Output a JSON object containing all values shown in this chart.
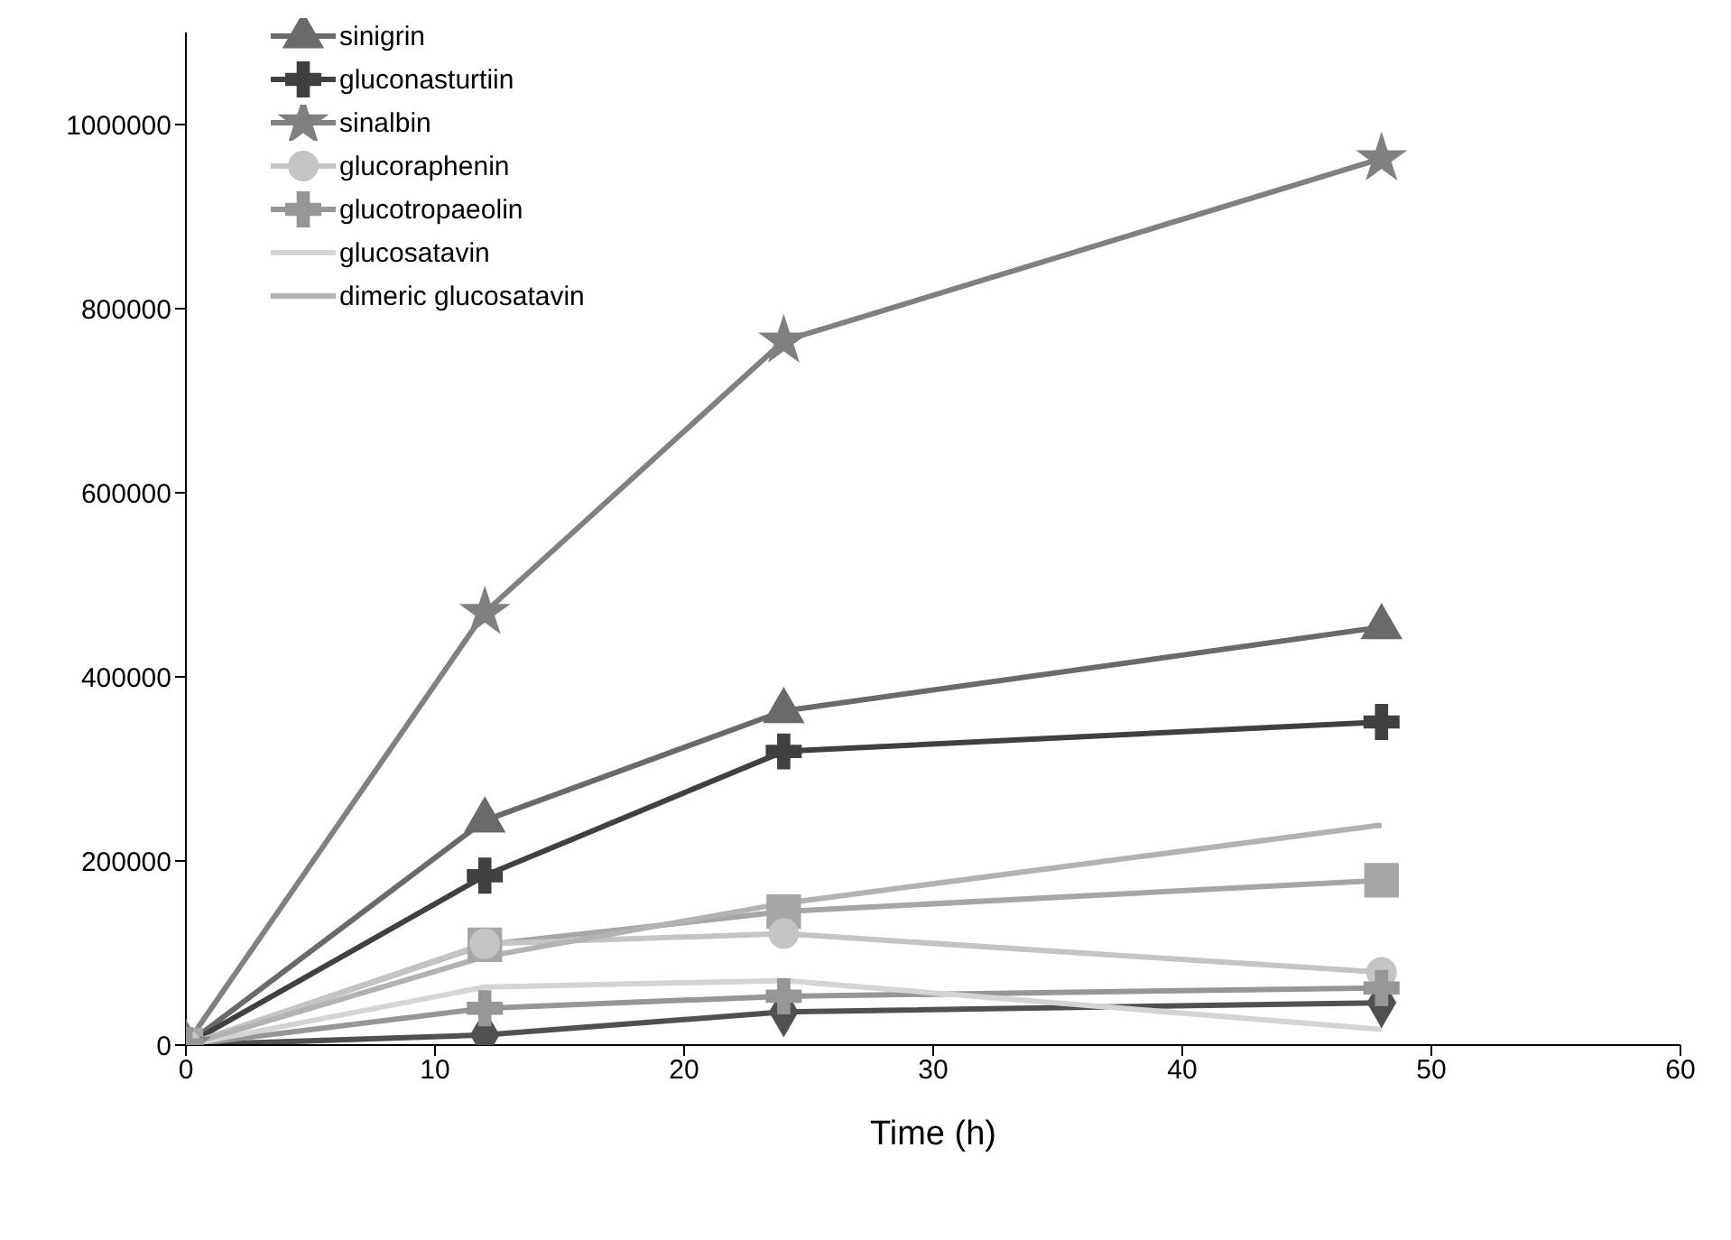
{
  "chart_data": {
    "type": "line",
    "xlabel": "Time (h)",
    "xlim": [
      0,
      60
    ],
    "xticks": [
      0,
      10,
      20,
      30,
      40,
      50,
      60
    ],
    "ylim": [
      0,
      1100000
    ],
    "yticks": [
      0,
      200000,
      400000,
      600000,
      800000,
      1000000
    ],
    "grid": false,
    "legend": "top left",
    "x": [
      0,
      12,
      24,
      48
    ],
    "series": [
      {
        "color": "#505050",
        "marker": "diamond",
        "values": [
          0,
          11000,
          36000,
          46000
        ]
      },
      {
        "color": "#a6a6a6",
        "marker": "square",
        "values": [
          0,
          109000,
          145000,
          179000
        ]
      },
      {
        "name": "sinigrin",
        "color": "#6a6a6a",
        "marker": "triangle",
        "values": [
          0,
          244000,
          363000,
          454000
        ]
      },
      {
        "name": "gluconasturtiin",
        "color": "#404040",
        "marker": "cross",
        "values": [
          0,
          184000,
          319000,
          351000
        ]
      },
      {
        "name": "sinalbin",
        "color": "#808080",
        "marker": "star",
        "values": [
          0,
          470000,
          765000,
          963000
        ]
      },
      {
        "name": "glucoraphenin",
        "color": "#c4c4c4",
        "marker": "circle",
        "values": [
          0,
          110000,
          121000,
          79000
        ]
      },
      {
        "name": "glucotropaeolin",
        "color": "#969696",
        "marker": "cross",
        "values": [
          0,
          40000,
          53000,
          62000
        ]
      },
      {
        "name": "glucosatavin",
        "color": "#d4d4d4",
        "marker": "none",
        "values": [
          0,
          63000,
          70000,
          17000
        ]
      },
      {
        "name": "dimeric glucosatavin",
        "color": "#b2b2b2",
        "marker": "none",
        "values": [
          0,
          96000,
          154000,
          239000
        ]
      }
    ]
  }
}
